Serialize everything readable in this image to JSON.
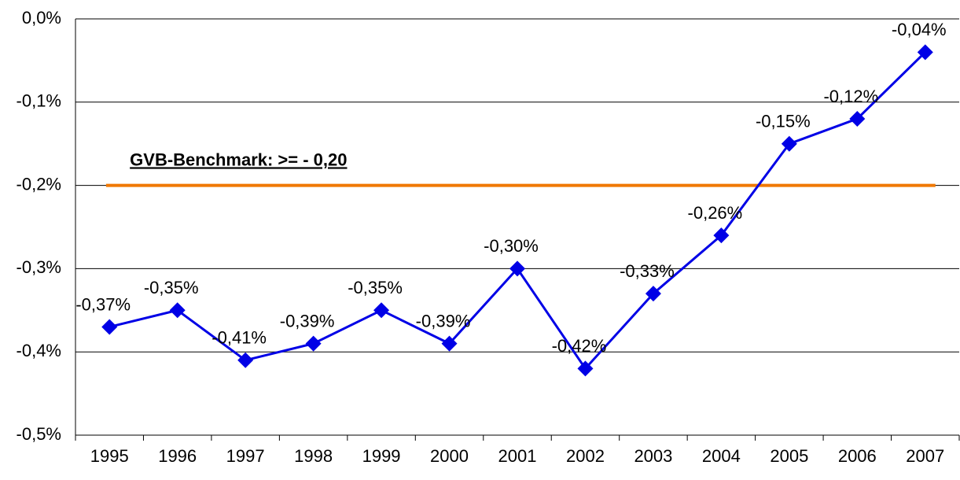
{
  "chart_data": {
    "type": "line",
    "categories": [
      "1995",
      "1996",
      "1997",
      "1998",
      "1999",
      "2000",
      "2001",
      "2002",
      "2003",
      "2004",
      "2005",
      "2006",
      "2007"
    ],
    "series": [
      {
        "color": "#0000e6",
        "values": [
          -0.37,
          -0.35,
          -0.41,
          -0.39,
          -0.35,
          -0.39,
          -0.3,
          -0.42,
          -0.33,
          -0.26,
          -0.15,
          -0.12,
          -0.04
        ],
        "value_labels": [
          "-0,37%",
          "-0,35%",
          "-0,41%",
          "-0,39%",
          "-0,35%",
          "-0,39%",
          "-0,30%",
          "-0,42%",
          "-0,33%",
          "-0,26%",
          "-0,15%",
          "-0,12%",
          "-0,04%"
        ]
      }
    ],
    "ylim": [
      -0.5,
      0
    ],
    "yticks": [
      {
        "value": -0.5,
        "label": "-0,5%"
      },
      {
        "value": -0.4,
        "label": "-0,4%"
      },
      {
        "value": -0.3,
        "label": "-0,3%"
      },
      {
        "value": -0.2,
        "label": "-0,2%"
      },
      {
        "value": -0.1,
        "label": "-0,1%"
      },
      {
        "value": 0,
        "label": "0,0%"
      }
    ],
    "grid": true,
    "benchmark": {
      "value": -0.2,
      "label": "GVB-Benchmark: >= - 0,20",
      "color": "#f07800"
    }
  }
}
